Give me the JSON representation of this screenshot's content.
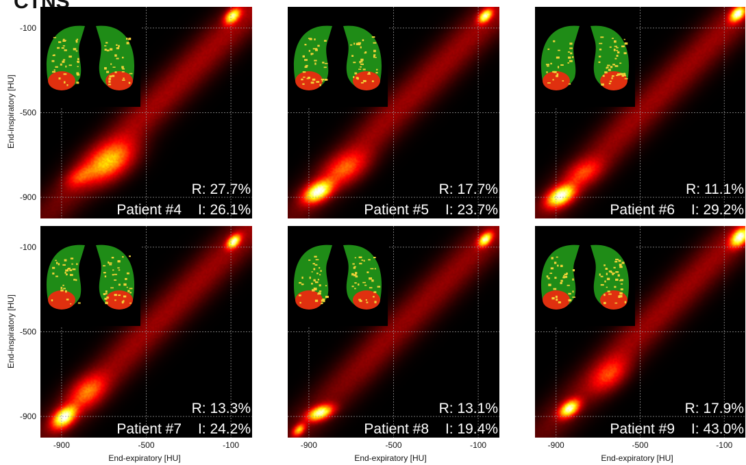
{
  "figure": {
    "corner_title": "CTNS"
  },
  "colors": {
    "panel_bg": "#000000",
    "normal": "#1f8c17",
    "impaired": "#f2d33a",
    "collapsed": "#e0300f"
  },
  "chart_data": {
    "type": "heatmap",
    "xlabel": "End-expiratory [HU]",
    "ylabel": "End-inspiratory [HU]",
    "xticks": [
      -900,
      -500,
      -100
    ],
    "yticks": [
      -900,
      -500,
      -100
    ],
    "xlim": [
      -1000,
      0
    ],
    "ylim": [
      -1000,
      0
    ],
    "colormap": "black-red-yellow-white (hot)",
    "grid": true,
    "panels": [
      {
        "label": "Patient #4",
        "R": "R: 27.7%",
        "I": "I: 26.1%",
        "blobs": [
          {
            "x": -680,
            "y": -730,
            "sx": 80,
            "sy": 65,
            "v": 0.55
          },
          {
            "x": -820,
            "y": -800,
            "sx": 45,
            "sy": 35,
            "v": 0.25
          },
          {
            "x": -95,
            "y": -40,
            "sx": 25,
            "sy": 25,
            "v": 0.85
          }
        ],
        "ridge": 0.16
      },
      {
        "label": "Patient #5",
        "R": "R: 17.7%",
        "I": "I: 23.7%",
        "blobs": [
          {
            "x": -860,
            "y": -870,
            "sx": 45,
            "sy": 35,
            "v": 1.0
          },
          {
            "x": -730,
            "y": -760,
            "sx": 70,
            "sy": 55,
            "v": 0.35
          },
          {
            "x": -70,
            "y": -40,
            "sx": 22,
            "sy": 22,
            "v": 0.9
          }
        ],
        "ridge": 0.15
      },
      {
        "label": "Patient #6",
        "R": "R: 11.1%",
        "I": "I: 29.2%",
        "blobs": [
          {
            "x": -880,
            "y": -890,
            "sx": 45,
            "sy": 35,
            "v": 1.0
          },
          {
            "x": -770,
            "y": -780,
            "sx": 60,
            "sy": 45,
            "v": 0.3
          },
          {
            "x": -40,
            "y": -30,
            "sx": 25,
            "sy": 25,
            "v": 1.0
          }
        ],
        "ridge": 0.15
      },
      {
        "label": "Patient #7",
        "R": "R: 13.3%",
        "I": "I: 24.2%",
        "blobs": [
          {
            "x": -890,
            "y": -900,
            "sx": 38,
            "sy": 35,
            "v": 1.0
          },
          {
            "x": -780,
            "y": -780,
            "sx": 60,
            "sy": 55,
            "v": 0.4
          },
          {
            "x": -90,
            "y": -70,
            "sx": 22,
            "sy": 22,
            "v": 0.95
          }
        ],
        "ridge": 0.15
      },
      {
        "label": "Patient #8",
        "R": "R: 13.1%",
        "I": "I: 19.4%",
        "blobs": [
          {
            "x": -850,
            "y": -880,
            "sx": 40,
            "sy": 25,
            "v": 0.95
          },
          {
            "x": -950,
            "y": -960,
            "sx": 20,
            "sy": 20,
            "v": 0.6
          },
          {
            "x": -70,
            "y": -60,
            "sx": 22,
            "sy": 22,
            "v": 0.9
          }
        ],
        "ridge": 0.14
      },
      {
        "label": "Patient #9",
        "R": "R: 17.9%",
        "I": "I: 43.0%",
        "blobs": [
          {
            "x": -840,
            "y": -860,
            "sx": 32,
            "sy": 28,
            "v": 0.95
          },
          {
            "x": -650,
            "y": -700,
            "sx": 60,
            "sy": 55,
            "v": 0.3
          },
          {
            "x": -30,
            "y": -50,
            "sx": 30,
            "sy": 30,
            "v": 1.0
          }
        ],
        "ridge": 0.15
      }
    ]
  }
}
